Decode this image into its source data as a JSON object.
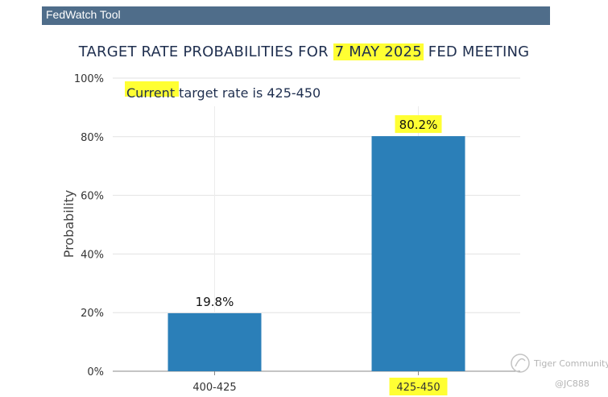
{
  "header": {
    "title": "FedWatch Tool"
  },
  "title": {
    "prefix": "TARGET RATE PROBABILITIES FOR ",
    "highlight": "7 MAY 2025",
    "suffix": " FED MEETING"
  },
  "annotation": {
    "highlight": "Current",
    "rest": " target rate is 425-450"
  },
  "watermark": {
    "brand": "Tiger Community",
    "handle": "@JC888"
  },
  "colors": {
    "bar": "#2b7fb8",
    "highlight": "#ffff33",
    "header": "#4f6d8a"
  },
  "chart_data": {
    "type": "bar",
    "categories": [
      "400-425",
      "425-450"
    ],
    "values": [
      19.8,
      80.2
    ],
    "value_labels": [
      "19.8%",
      "80.2%"
    ],
    "highlighted_categories": [
      "425-450"
    ],
    "title": "TARGET RATE PROBABILITIES FOR 7 MAY 2025 FED MEETING",
    "xlabel": "",
    "ylabel": "Probability",
    "ylim": [
      0,
      100
    ],
    "yticks": [
      "0%",
      "20%",
      "40%",
      "60%",
      "80%",
      "100%"
    ],
    "grid": true
  }
}
